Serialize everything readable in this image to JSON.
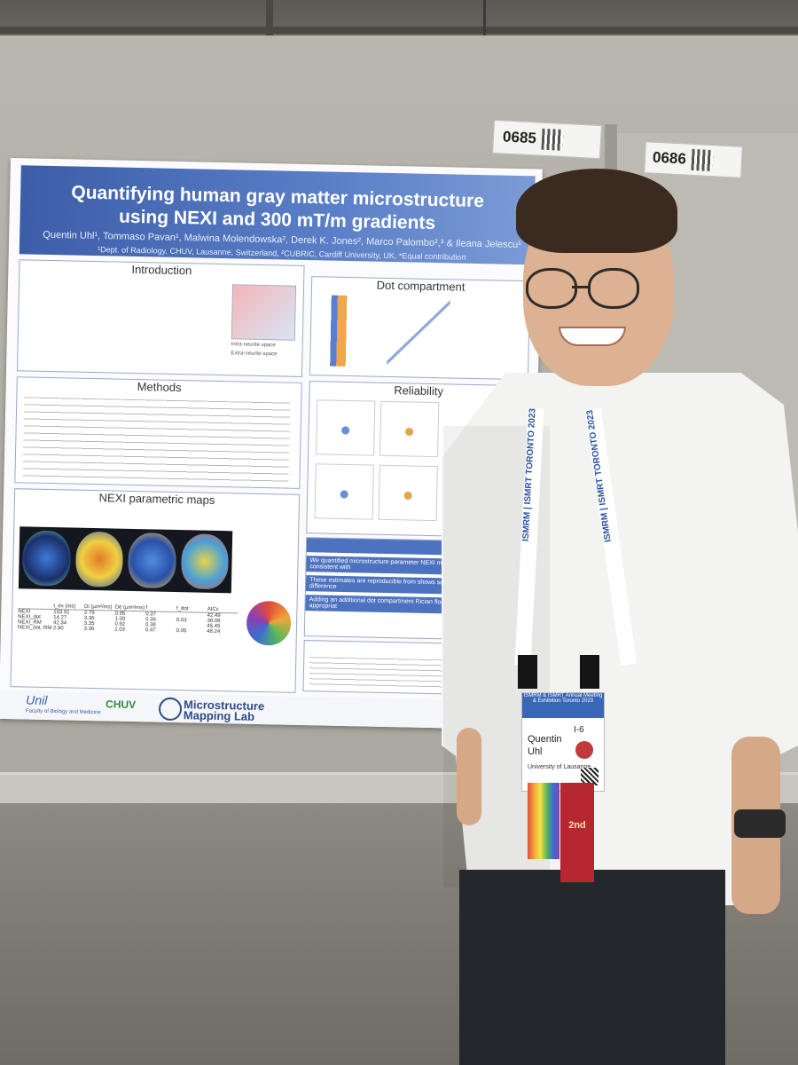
{
  "booth_tags": [
    {
      "number": "0685"
    },
    {
      "number": "0686"
    }
  ],
  "poster": {
    "title_line1": "Quantifying human gray matter microstructure",
    "title_line2": "using NEXI and 300 mT/m gradients",
    "authors": "Quentin Uhl¹, Tommaso Pavan¹, Malwina Molendowska², Derek K. Jones², Marco Palombo²,³ & Ileana Jelescu¹",
    "affiliations": "¹Dept. of Radiology, CHUV, Lausanne, Switzerland, ²CUBRIC, Cardiff University, UK, *Equal contribution",
    "sections": {
      "introduction": "Introduction",
      "dot_compartment": "Dot compartment",
      "methods": "Methods",
      "reliability": "Reliability",
      "nexi_maps": "NEXI parametric maps",
      "summary": "Summ",
      "references": "Refere"
    },
    "nexi_legend": {
      "intra": "Intra-neurite space",
      "extra": "Extra-neurite space"
    },
    "summary_lines": [
      "We quantified microstructure parameter NEXI model. Estimates are consistent with",
      "These estimates are reproducible from shows sensitivity to individual difference",
      "Adding an additional dot compartment Rician floor in the fit is a more appropriat"
    ],
    "table": {
      "headers": [
        "",
        "t_ex (ms)",
        "Di (µm²/ms)",
        "De (µm²/ms)",
        "f",
        "f_dot",
        "AICc"
      ],
      "rows": [
        [
          "NEXI",
          "103.91",
          "2.79",
          "0.95",
          "0.37",
          "",
          "42.49"
        ],
        [
          "NEXI_dot",
          "14.27",
          "3.36",
          "1.00",
          "0.36",
          "0.03",
          "38.08"
        ],
        [
          "NEXI_RM",
          "42.34",
          "3.35",
          "0.92",
          "0.38",
          "",
          "45.45"
        ],
        [
          "NEXI_dot, RM",
          "2.90",
          "3.36",
          "1.03",
          "0.47",
          "0.05",
          "48.24"
        ]
      ]
    },
    "logos": {
      "microstructure": "Microstructure Mapping Lab",
      "unil": "Unil",
      "unil_sub": "Faculty of Biology and Medicine",
      "chuv": "CHUV"
    }
  },
  "badge": {
    "header": "ISMRM & ISMRT Annual Meeting & Exhibition Toronto 2023",
    "id": "I-6",
    "first_name": "Quentin",
    "last_name": "Uhl",
    "organization": "University of Lausanne"
  },
  "lanyard_text": "ISMRM | ISMRT TORONTO 2023",
  "ribbon_red": "2nd",
  "colors": {
    "poster_header": "#3c5da8",
    "poster_accent": "#4d72c0",
    "shirt": "#f3f3f1",
    "lanyard_text": "#2c4fa3"
  }
}
